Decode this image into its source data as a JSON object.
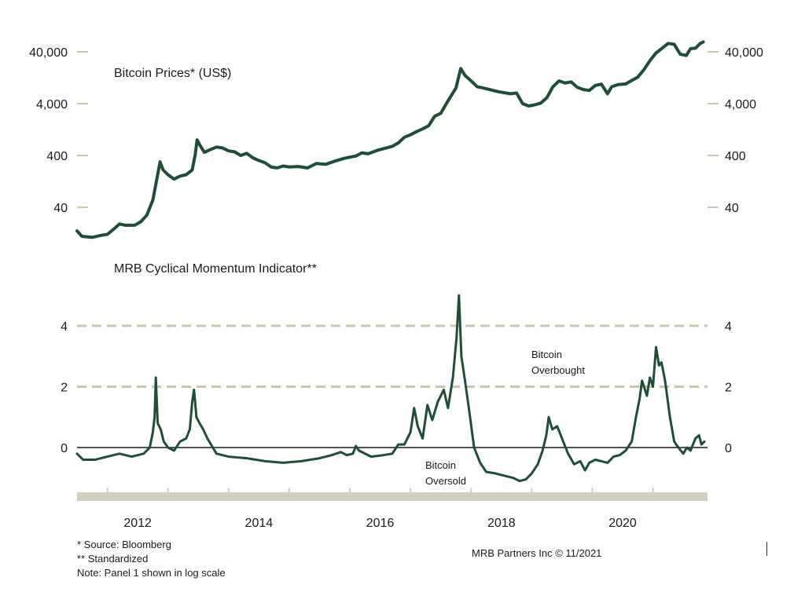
{
  "colors": {
    "series": "#1f4e37",
    "tick": "#c9c6b2",
    "dashed": "#c9c6b2",
    "axis_band": "#d1cfbd",
    "zero_line": "#1a1a1a"
  },
  "chart_data": [
    {
      "type": "line",
      "title": "Bitcoin Prices* (US$)",
      "yscale": "log",
      "ylim": [
        10,
        80000
      ],
      "yticks": [
        40,
        400,
        4000,
        40000
      ],
      "ytick_labels": [
        "40",
        "400",
        "4,000",
        "40,000"
      ],
      "series": [
        {
          "name": "Bitcoin Prices",
          "points": [
            [
              2011.5,
              14
            ],
            [
              2011.58,
              11
            ],
            [
              2011.75,
              10.5
            ],
            [
              2011.9,
              11.5
            ],
            [
              2012.0,
              12
            ],
            [
              2012.1,
              15
            ],
            [
              2012.2,
              19
            ],
            [
              2012.3,
              18
            ],
            [
              2012.45,
              18
            ],
            [
              2012.55,
              21
            ],
            [
              2012.65,
              28
            ],
            [
              2012.75,
              55
            ],
            [
              2012.8,
              110
            ],
            [
              2012.87,
              300
            ],
            [
              2012.92,
              210
            ],
            [
              2013.0,
              170
            ],
            [
              2013.1,
              140
            ],
            [
              2013.2,
              160
            ],
            [
              2013.3,
              170
            ],
            [
              2013.4,
              210
            ],
            [
              2013.45,
              420
            ],
            [
              2013.48,
              800
            ],
            [
              2013.52,
              650
            ],
            [
              2013.6,
              460
            ],
            [
              2013.7,
              520
            ],
            [
              2013.8,
              580
            ],
            [
              2013.9,
              560
            ],
            [
              2014.0,
              490
            ],
            [
              2014.1,
              470
            ],
            [
              2014.2,
              400
            ],
            [
              2014.3,
              440
            ],
            [
              2014.4,
              360
            ],
            [
              2014.5,
              320
            ],
            [
              2014.6,
              290
            ],
            [
              2014.7,
              240
            ],
            [
              2014.8,
              230
            ],
            [
              2014.9,
              250
            ],
            [
              2015.0,
              240
            ],
            [
              2015.15,
              245
            ],
            [
              2015.3,
              230
            ],
            [
              2015.45,
              280
            ],
            [
              2015.6,
              270
            ],
            [
              2015.75,
              310
            ],
            [
              2015.9,
              350
            ],
            [
              2016.0,
              370
            ],
            [
              2016.1,
              390
            ],
            [
              2016.2,
              450
            ],
            [
              2016.3,
              430
            ],
            [
              2016.45,
              500
            ],
            [
              2016.6,
              560
            ],
            [
              2016.7,
              600
            ],
            [
              2016.8,
              700
            ],
            [
              2016.9,
              900
            ],
            [
              2017.0,
              1000
            ],
            [
              2017.1,
              1150
            ],
            [
              2017.2,
              1300
            ],
            [
              2017.3,
              1500
            ],
            [
              2017.4,
              2300
            ],
            [
              2017.5,
              2600
            ],
            [
              2017.58,
              3800
            ],
            [
              2017.65,
              5200
            ],
            [
              2017.75,
              8000
            ],
            [
              2017.83,
              19000
            ],
            [
              2017.9,
              14000
            ],
            [
              2018.0,
              11000
            ],
            [
              2018.1,
              8500
            ],
            [
              2018.2,
              8000
            ],
            [
              2018.3,
              7500
            ],
            [
              2018.45,
              6800
            ],
            [
              2018.55,
              6500
            ],
            [
              2018.65,
              6200
            ],
            [
              2018.75,
              6400
            ],
            [
              2018.85,
              4000
            ],
            [
              2018.95,
              3600
            ],
            [
              2019.05,
              3800
            ],
            [
              2019.15,
              4100
            ],
            [
              2019.25,
              5200
            ],
            [
              2019.35,
              8500
            ],
            [
              2019.45,
              11000
            ],
            [
              2019.55,
              10000
            ],
            [
              2019.65,
              10500
            ],
            [
              2019.75,
              8300
            ],
            [
              2019.85,
              7500
            ],
            [
              2019.95,
              7200
            ],
            [
              2020.05,
              9000
            ],
            [
              2020.15,
              9500
            ],
            [
              2020.25,
              6200
            ],
            [
              2020.32,
              8500
            ],
            [
              2020.42,
              9300
            ],
            [
              2020.55,
              9600
            ],
            [
              2020.65,
              11200
            ],
            [
              2020.75,
              13000
            ],
            [
              2020.85,
              18000
            ],
            [
              2020.95,
              27000
            ],
            [
              2021.05,
              38000
            ],
            [
              2021.15,
              47000
            ],
            [
              2021.25,
              58000
            ],
            [
              2021.35,
              56000
            ],
            [
              2021.45,
              36000
            ],
            [
              2021.55,
              34000
            ],
            [
              2021.62,
              46000
            ],
            [
              2021.7,
              47000
            ],
            [
              2021.78,
              58000
            ],
            [
              2021.83,
              62000
            ]
          ]
        }
      ]
    },
    {
      "type": "line",
      "title": "MRB Cyclical Momentum Indicator**",
      "ylim": [
        -1.5,
        5.2
      ],
      "yticks": [
        0,
        2,
        4
      ],
      "ytick_labels": [
        "0",
        "2",
        "4"
      ],
      "reference_lines": [
        2,
        4
      ],
      "x_tick_labels": [
        "2012",
        "2014",
        "2016",
        "2018",
        "2020"
      ],
      "x_tick_values": [
        2012,
        2014,
        2016,
        2018,
        2020
      ],
      "xlim": [
        2011.5,
        2021.9
      ],
      "series": [
        {
          "name": "MRB Cyclical Momentum Indicator",
          "points": [
            [
              2011.5,
              -0.2
            ],
            [
              2011.6,
              -0.4
            ],
            [
              2011.8,
              -0.4
            ],
            [
              2012.0,
              -0.3
            ],
            [
              2012.2,
              -0.2
            ],
            [
              2012.4,
              -0.3
            ],
            [
              2012.6,
              -0.2
            ],
            [
              2012.7,
              0.0
            ],
            [
              2012.75,
              0.5
            ],
            [
              2012.78,
              1.0
            ],
            [
              2012.8,
              2.3
            ],
            [
              2012.83,
              0.8
            ],
            [
              2012.88,
              0.6
            ],
            [
              2012.93,
              0.2
            ],
            [
              2013.0,
              0.0
            ],
            [
              2013.1,
              -0.1
            ],
            [
              2013.2,
              0.2
            ],
            [
              2013.3,
              0.3
            ],
            [
              2013.36,
              0.6
            ],
            [
              2013.4,
              1.5
            ],
            [
              2013.43,
              1.9
            ],
            [
              2013.47,
              1.0
            ],
            [
              2013.52,
              0.8
            ],
            [
              2013.58,
              0.6
            ],
            [
              2013.65,
              0.3
            ],
            [
              2013.8,
              -0.2
            ],
            [
              2014.0,
              -0.3
            ],
            [
              2014.3,
              -0.35
            ],
            [
              2014.6,
              -0.45
            ],
            [
              2014.9,
              -0.5
            ],
            [
              2015.2,
              -0.45
            ],
            [
              2015.5,
              -0.35
            ],
            [
              2015.7,
              -0.25
            ],
            [
              2015.85,
              -0.15
            ],
            [
              2015.95,
              -0.25
            ],
            [
              2016.05,
              -0.2
            ],
            [
              2016.1,
              0.05
            ],
            [
              2016.15,
              -0.1
            ],
            [
              2016.35,
              -0.3
            ],
            [
              2016.55,
              -0.25
            ],
            [
              2016.7,
              -0.2
            ],
            [
              2016.8,
              0.1
            ],
            [
              2016.9,
              0.1
            ],
            [
              2017.0,
              0.5
            ],
            [
              2017.06,
              1.3
            ],
            [
              2017.12,
              0.7
            ],
            [
              2017.2,
              0.3
            ],
            [
              2017.28,
              1.4
            ],
            [
              2017.36,
              0.9
            ],
            [
              2017.45,
              1.5
            ],
            [
              2017.55,
              1.9
            ],
            [
              2017.62,
              1.3
            ],
            [
              2017.7,
              2.3
            ],
            [
              2017.76,
              3.6
            ],
            [
              2017.8,
              5.0
            ],
            [
              2017.84,
              3.0
            ],
            [
              2017.9,
              2.2
            ],
            [
              2017.97,
              1.2
            ],
            [
              2018.05,
              0.0
            ],
            [
              2018.15,
              -0.5
            ],
            [
              2018.25,
              -0.8
            ],
            [
              2018.4,
              -0.85
            ],
            [
              2018.5,
              -0.9
            ],
            [
              2018.6,
              -0.95
            ],
            [
              2018.7,
              -1.0
            ],
            [
              2018.8,
              -1.1
            ],
            [
              2018.9,
              -1.05
            ],
            [
              2019.0,
              -0.85
            ],
            [
              2019.1,
              -0.55
            ],
            [
              2019.18,
              -0.1
            ],
            [
              2019.24,
              0.4
            ],
            [
              2019.28,
              1.0
            ],
            [
              2019.34,
              0.6
            ],
            [
              2019.42,
              0.7
            ],
            [
              2019.5,
              0.3
            ],
            [
              2019.6,
              -0.2
            ],
            [
              2019.7,
              -0.55
            ],
            [
              2019.8,
              -0.45
            ],
            [
              2019.88,
              -0.75
            ],
            [
              2019.95,
              -0.5
            ],
            [
              2020.05,
              -0.4
            ],
            [
              2020.15,
              -0.45
            ],
            [
              2020.25,
              -0.5
            ],
            [
              2020.35,
              -0.3
            ],
            [
              2020.45,
              -0.25
            ],
            [
              2020.55,
              -0.1
            ],
            [
              2020.65,
              0.2
            ],
            [
              2020.72,
              1.0
            ],
            [
              2020.78,
              1.6
            ],
            [
              2020.82,
              2.2
            ],
            [
              2020.9,
              1.7
            ],
            [
              2020.95,
              2.3
            ],
            [
              2021.0,
              2.0
            ],
            [
              2021.05,
              3.3
            ],
            [
              2021.1,
              2.7
            ],
            [
              2021.14,
              2.8
            ],
            [
              2021.2,
              2.2
            ],
            [
              2021.28,
              1.0
            ],
            [
              2021.35,
              0.2
            ],
            [
              2021.42,
              0.0
            ],
            [
              2021.5,
              -0.2
            ],
            [
              2021.56,
              0.0
            ],
            [
              2021.62,
              -0.1
            ],
            [
              2021.7,
              0.3
            ],
            [
              2021.76,
              0.4
            ],
            [
              2021.8,
              0.1
            ],
            [
              2021.85,
              0.2
            ]
          ]
        }
      ]
    }
  ],
  "annotations": {
    "overbought_line1": "Bitcoin",
    "overbought_line2": "Overbought",
    "oversold_line1": "Bitcoin",
    "oversold_line2": "Oversold"
  },
  "footnotes": {
    "source": "*  Source: Bloomberg",
    "standardized": "** Standardized",
    "note": "Note: Panel 1 shown in log scale"
  },
  "credit": "MRB Partners Inc © 11/2021"
}
